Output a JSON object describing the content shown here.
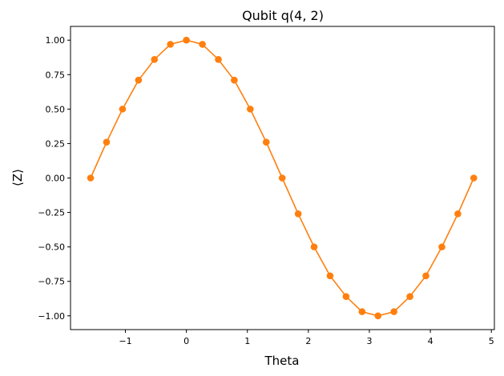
{
  "chart_data": {
    "type": "line",
    "title": "Qubit q(4, 2)",
    "xlabel": "Theta",
    "ylabel": "⟨Z⟩",
    "xlim": [
      -1.9,
      5.05
    ],
    "ylim": [
      -1.1,
      1.1
    ],
    "xticks": [
      {
        "value": -1,
        "label": "−1"
      },
      {
        "value": 0,
        "label": "0"
      },
      {
        "value": 1,
        "label": "1"
      },
      {
        "value": 2,
        "label": "2"
      },
      {
        "value": 3,
        "label": "3"
      },
      {
        "value": 4,
        "label": "4"
      },
      {
        "value": 5,
        "label": "5"
      }
    ],
    "yticks": [
      {
        "value": 1.0,
        "label": "1.00"
      },
      {
        "value": 0.75,
        "label": "0.75"
      },
      {
        "value": 0.5,
        "label": "0.50"
      },
      {
        "value": 0.25,
        "label": "0.25"
      },
      {
        "value": 0.0,
        "label": "0.00"
      },
      {
        "value": -0.25,
        "label": "−0.25"
      },
      {
        "value": -0.5,
        "label": "−0.50"
      },
      {
        "value": -0.75,
        "label": "−0.75"
      },
      {
        "value": -1.0,
        "label": "−1.00"
      }
    ],
    "grid": false,
    "legend": "none",
    "series": [
      {
        "color": "#ff7f0e",
        "marker": "circle",
        "x": [
          -1.571,
          -1.309,
          -1.047,
          -0.785,
          -0.524,
          -0.262,
          0.0,
          0.262,
          0.524,
          0.785,
          1.047,
          1.309,
          1.571,
          1.833,
          2.094,
          2.356,
          2.618,
          2.88,
          3.142,
          3.403,
          3.665,
          3.927,
          4.189,
          4.451,
          4.712
        ],
        "y": [
          0.0,
          0.26,
          0.5,
          0.71,
          0.86,
          0.97,
          1.0,
          0.97,
          0.86,
          0.71,
          0.5,
          0.26,
          0.0,
          -0.26,
          -0.5,
          -0.71,
          -0.86,
          -0.97,
          -1.0,
          -0.97,
          -0.86,
          -0.71,
          -0.5,
          -0.26,
          0.0
        ]
      }
    ]
  }
}
